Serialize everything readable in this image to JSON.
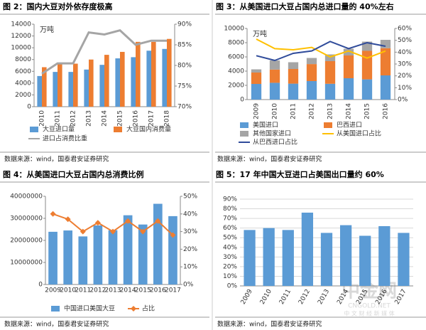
{
  "chart_data": [
    {
      "type": "bar",
      "title": "图 2：国内大豆对外依存度极高",
      "ylabel": "万吨",
      "source": "数据来源：wind，国泰君安证券研究",
      "categories": [
        "2010",
        "2011",
        "2012",
        "2013",
        "2014",
        "2015",
        "2016",
        "2017",
        "2018"
      ],
      "ylim": [
        0,
        14000
      ],
      "yticks": [
        0,
        2000,
        4000,
        6000,
        8000,
        10000,
        12000,
        14000
      ],
      "y2lim": [
        70,
        90
      ],
      "y2ticks": [
        {
          "value": 70,
          "label": "70%"
        },
        {
          "value": 75,
          "label": "75%"
        },
        {
          "value": 80,
          "label": "80%"
        },
        {
          "value": 85,
          "label": "85%"
        },
        {
          "value": 90,
          "label": "90%"
        }
      ],
      "grid": false,
      "stacked": false,
      "series": [
        {
          "name": "大豆进口量",
          "kind": "bar",
          "color": "#5b9bd5",
          "values": [
            5200,
            5900,
            5900,
            6300,
            7100,
            8200,
            8400,
            9500,
            9800
          ]
        },
        {
          "name": "大豆国内消费量",
          "kind": "bar",
          "color": "#ed7d31",
          "values": [
            6700,
            7300,
            7300,
            8000,
            8800,
            9300,
            11000,
            11000,
            11500
          ]
        },
        {
          "name": "进口占消费比重",
          "kind": "line",
          "axis": "y2",
          "color": "#a5a5a5",
          "values": [
            78,
            80.5,
            80.5,
            88,
            87.5,
            88.5,
            85,
            86,
            86
          ]
        }
      ]
    },
    {
      "type": "bar",
      "title": "图 3：从美国进口大豆占国内总进口量的 40%左右",
      "ylabel": "万吨",
      "source": "数据来源：wind，国泰君安证券研究",
      "categories": [
        "2009",
        "2010",
        "2011",
        "2012",
        "2013",
        "2014",
        "2015",
        "2016"
      ],
      "ylim": [
        0,
        10000
      ],
      "yticks": [
        0,
        2000,
        4000,
        6000,
        8000,
        10000
      ],
      "y2lim": [
        0,
        60
      ],
      "y2ticks": [
        {
          "value": 0,
          "label": "0%"
        },
        {
          "value": 10,
          "label": "10%"
        },
        {
          "value": 20,
          "label": "20%"
        },
        {
          "value": 30,
          "label": "30%"
        },
        {
          "value": 40,
          "label": "40%"
        },
        {
          "value": 50,
          "label": "50%"
        },
        {
          "value": 60,
          "label": "60%"
        }
      ],
      "grid": false,
      "stacked": true,
      "series": [
        {
          "name": "美国进口",
          "kind": "bar",
          "color": "#5b9bd5",
          "values": [
            2200,
            2360,
            2240,
            2600,
            2220,
            3000,
            2840,
            3400
          ]
        },
        {
          "name": "巴西进口",
          "kind": "bar",
          "color": "#ed7d31",
          "values": [
            1600,
            1860,
            2060,
            2390,
            3180,
            3200,
            4010,
            3820
          ]
        },
        {
          "name": "其他国家进口",
          "kind": "bar",
          "color": "#a5a5a5",
          "values": [
            450,
            1280,
            950,
            860,
            950,
            950,
            1300,
            1180
          ]
        },
        {
          "name": "从美国进口占比",
          "kind": "line",
          "axis": "y2",
          "color": "#ffc000",
          "values": [
            51,
            43,
            42,
            44,
            36,
            41,
            35,
            41
          ]
        },
        {
          "name": "从巴西进口占比",
          "kind": "line",
          "axis": "y2",
          "color": "#2f4b9a",
          "values": [
            37,
            33,
            39,
            41,
            49,
            43,
            48,
            45
          ]
        }
      ]
    },
    {
      "type": "bar",
      "title": "图 4：从美国进口大豆占国内总消费比例",
      "source": "数据来源：wind，国泰君安证券研究",
      "categories": [
        "2009",
        "2010",
        "2011",
        "2012",
        "2013",
        "2014",
        "2015",
        "2016",
        "2017"
      ],
      "ylim": [
        0,
        40000000
      ],
      "yticks": [
        0,
        10000000,
        20000000,
        30000000,
        40000000
      ],
      "y2lim": [
        0,
        50
      ],
      "y2ticks": [
        {
          "value": 0,
          "label": "0%"
        },
        {
          "value": 10,
          "label": "10%"
        },
        {
          "value": 20,
          "label": "20%"
        },
        {
          "value": 30,
          "label": "30%"
        },
        {
          "value": 40,
          "label": "40%"
        },
        {
          "value": 50,
          "label": "50%"
        }
      ],
      "grid": false,
      "stacked": false,
      "series": [
        {
          "name": "中国进口美国大豆",
          "kind": "bar",
          "color": "#5b9bd5",
          "values": [
            23900000,
            24500000,
            21800000,
            26800000,
            24600000,
            31400000,
            27200000,
            36600000,
            31000000
          ]
        },
        {
          "name": "占比",
          "kind": "line",
          "axis": "y2",
          "color": "#ed7d31",
          "marker": true,
          "values": [
            40,
            37,
            30,
            35,
            30,
            36,
            30,
            36,
            28
          ]
        }
      ]
    },
    {
      "type": "bar",
      "title": "图 5：17 年中国大豆进口占美国出口量约 60%",
      "source": "数据来源：wind，国泰君安证券研究",
      "categories": [
        "2009",
        "2010",
        "2011",
        "2012",
        "2013",
        "2014",
        "2015",
        "2016",
        "2017"
      ],
      "ylim": [
        0,
        90
      ],
      "yticks": [
        {
          "value": 0,
          "label": "0%"
        },
        {
          "value": 10,
          "label": "10%"
        },
        {
          "value": 20,
          "label": "20%"
        },
        {
          "value": 30,
          "label": "30%"
        },
        {
          "value": 40,
          "label": "40%"
        },
        {
          "value": 50,
          "label": "50%"
        },
        {
          "value": 60,
          "label": "60%"
        },
        {
          "value": 70,
          "label": "70%"
        },
        {
          "value": 80,
          "label": "80%"
        },
        {
          "value": 90,
          "label": "90%"
        }
      ],
      "grid": true,
      "stacked": false,
      "series": [
        {
          "kind": "bar",
          "color": "#5b9bd5",
          "values": [
            58,
            60,
            58,
            76,
            55,
            63,
            52,
            62,
            55
          ]
        }
      ]
    }
  ],
  "watermark": [
    "中金网",
    "CNGOLD.NET",
    "中 文 财 经 新 媒 体"
  ]
}
